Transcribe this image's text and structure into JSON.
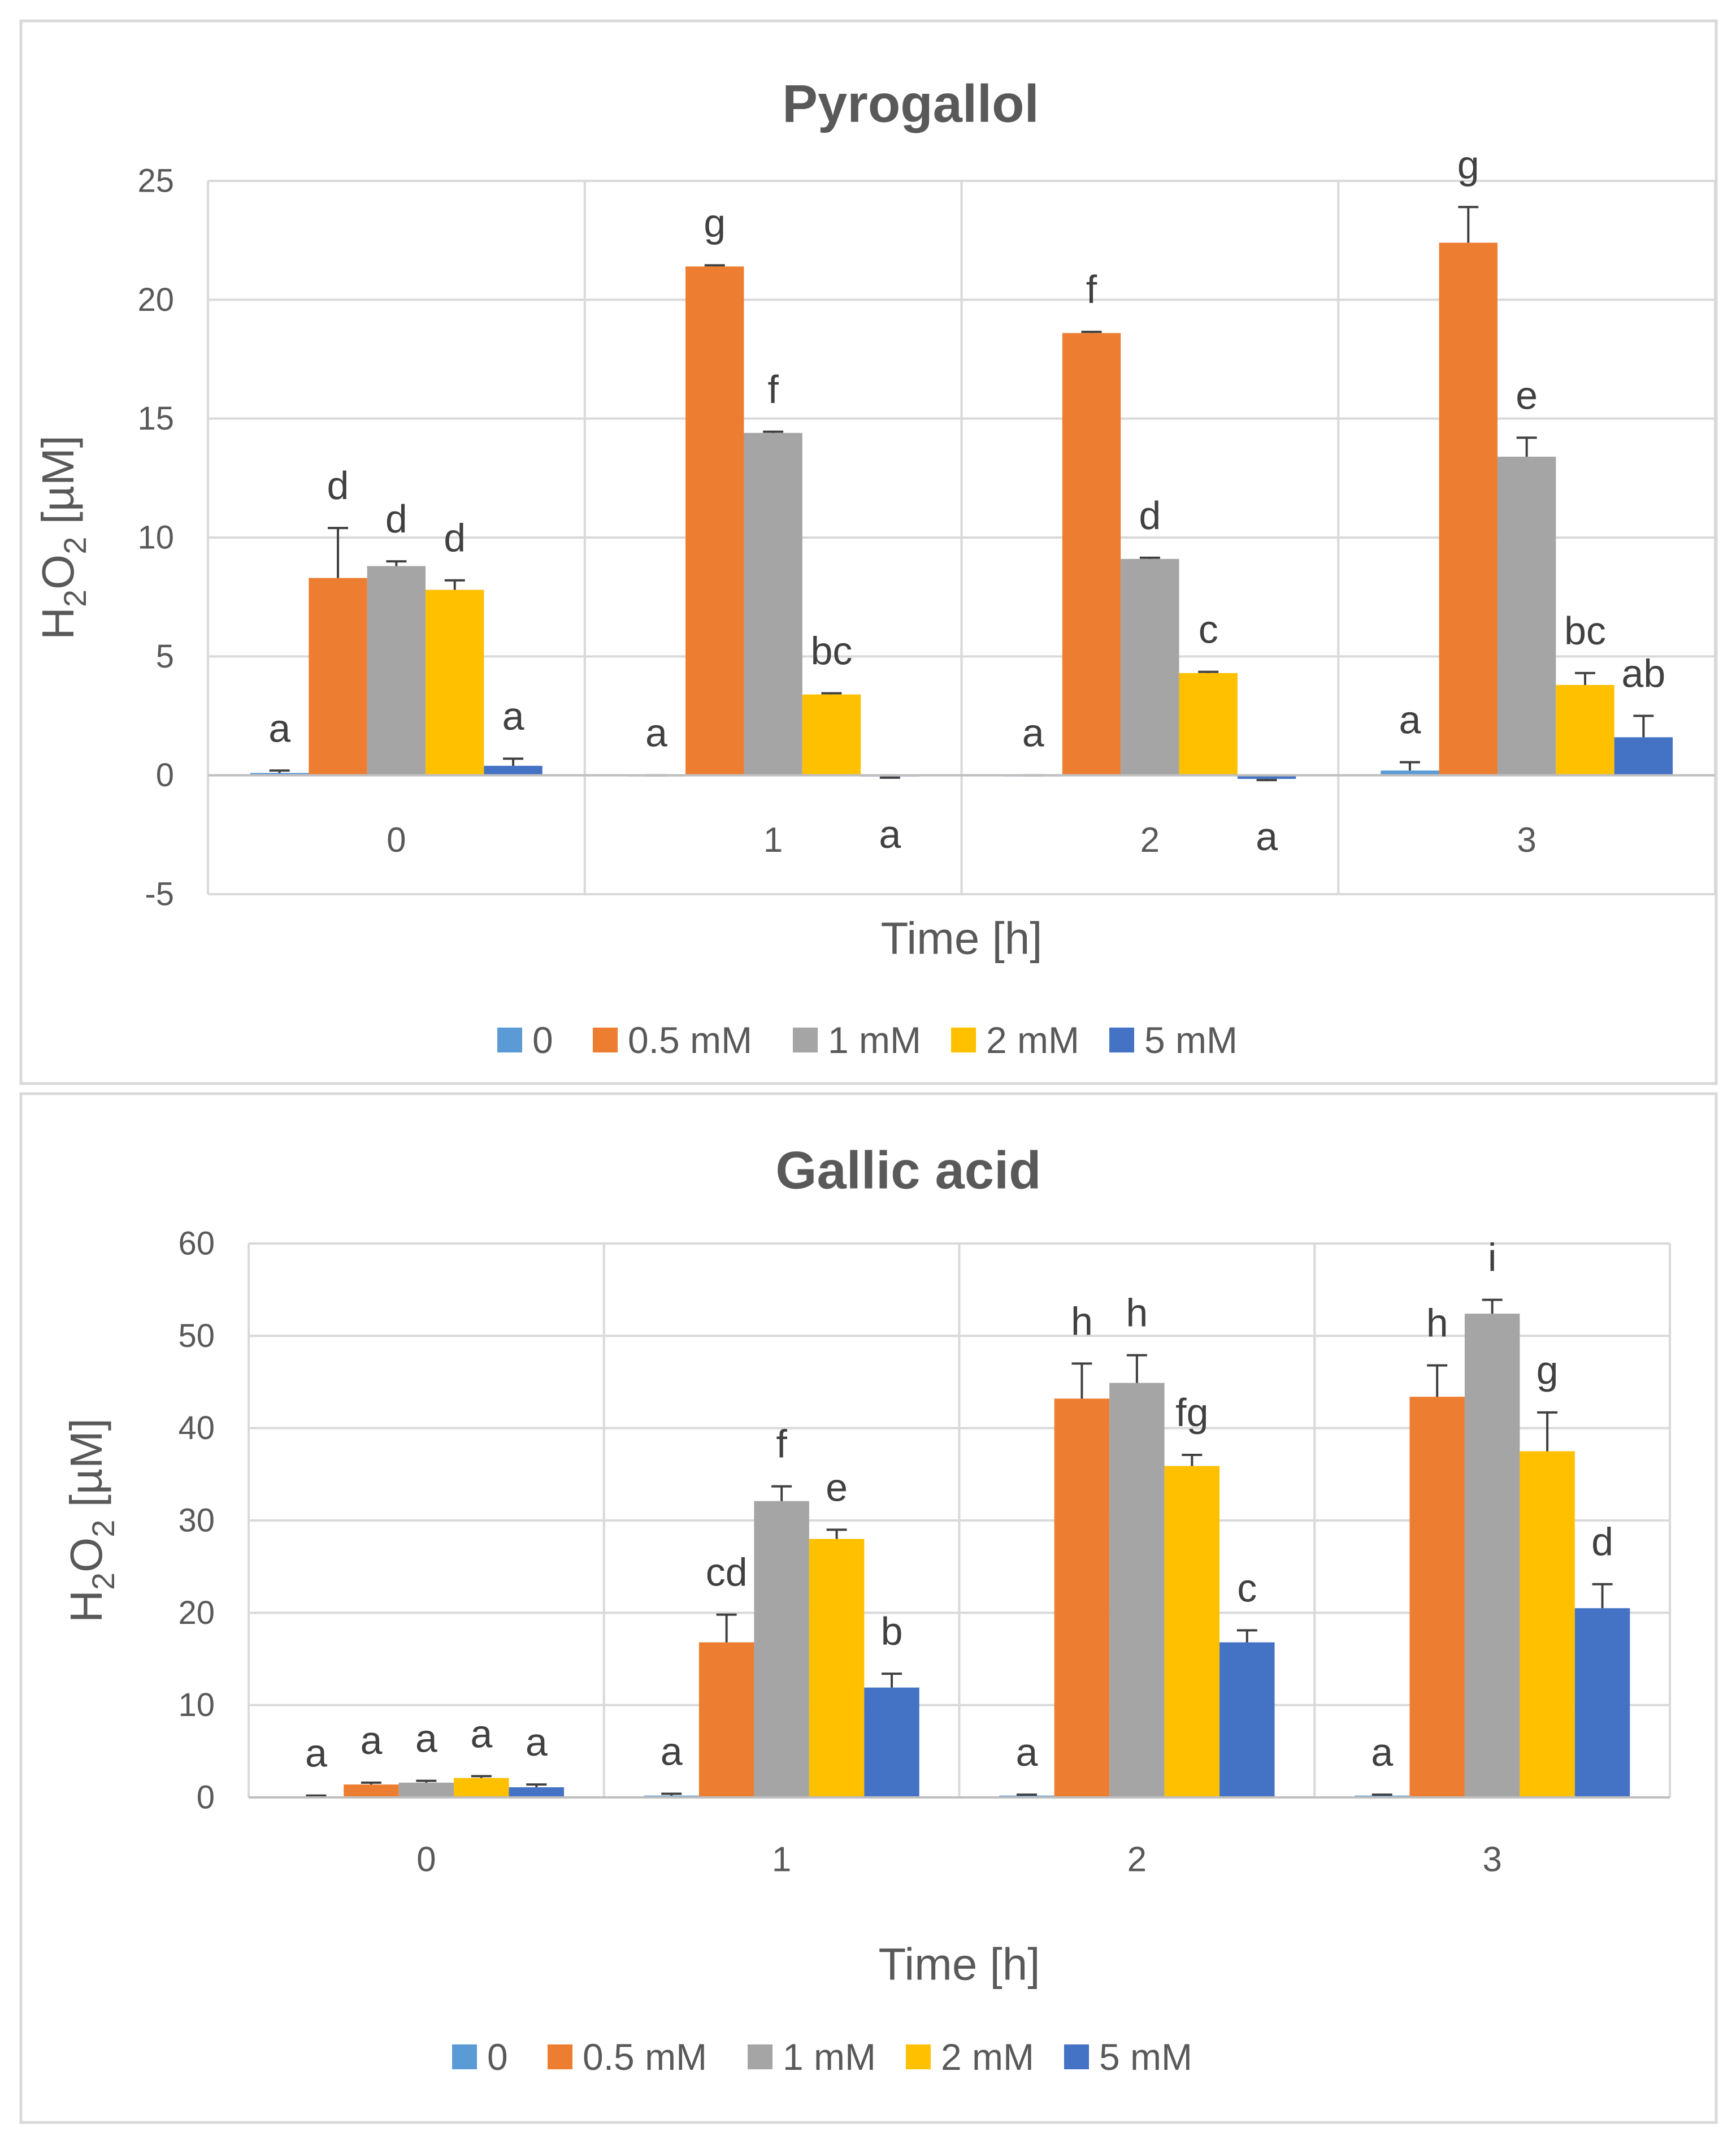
{
  "chart_data": [
    {
      "type": "bar",
      "title": "Pyrogallol",
      "xlabel": "Time [h]",
      "ylabel_main": "H",
      "ylabel_sub1": "2",
      "ylabel_mid": "O",
      "ylabel_sub2": "2",
      "ylabel_unit": " [µM]",
      "ylim": [
        -5,
        25
      ],
      "yticks": [
        -5,
        0,
        5,
        10,
        15,
        20,
        25
      ],
      "categories": [
        "0",
        "1",
        "2",
        "3"
      ],
      "legend": [
        "0",
        "0.5 mM",
        "1 mM",
        "2 mM",
        "5 mM"
      ],
      "colors": [
        "#5B9BD5",
        "#ED7D31",
        "#A5A5A5",
        "#FFC000",
        "#4472C4"
      ],
      "series": [
        {
          "name": "0",
          "values": [
            0.1,
            0,
            0,
            0.2
          ],
          "errors": [
            0.1,
            0,
            0,
            0.35
          ],
          "labels": [
            "a",
            "a",
            "a",
            "a"
          ]
        },
        {
          "name": "0.5 mM",
          "values": [
            8.3,
            21.4,
            18.6,
            22.4
          ],
          "errors": [
            2.1,
            0.05,
            0.05,
            1.5
          ],
          "labels": [
            "d",
            "g",
            "f",
            "g"
          ]
        },
        {
          "name": "1 mM",
          "values": [
            8.8,
            14.4,
            9.1,
            13.4
          ],
          "errors": [
            0.2,
            0.05,
            0.05,
            0.8
          ],
          "labels": [
            "d",
            "f",
            "d",
            "e"
          ]
        },
        {
          "name": "2 mM",
          "values": [
            7.8,
            3.4,
            4.3,
            3.8
          ],
          "errors": [
            0.4,
            0.05,
            0.05,
            0.5
          ],
          "labels": [
            "d",
            "bc",
            "c",
            "bc"
          ]
        },
        {
          "name": "5 mM",
          "values": [
            0.4,
            -0.05,
            -0.15,
            1.6
          ],
          "errors": [
            0.3,
            0.05,
            0.05,
            0.9
          ],
          "labels": [
            "a",
            "a",
            "a",
            "ab"
          ]
        }
      ]
    },
    {
      "type": "bar",
      "title": "Gallic acid",
      "xlabel": "Time [h]",
      "ylabel_main": "H",
      "ylabel_sub1": "2",
      "ylabel_mid": "O",
      "ylabel_sub2": "2",
      "ylabel_unit": " [µM]",
      "ylim": [
        0,
        60
      ],
      "yticks": [
        0,
        10,
        20,
        30,
        40,
        50,
        60
      ],
      "categories": [
        "0",
        "1",
        "2",
        "3"
      ],
      "legend": [
        "0",
        "0.5 mM",
        "1 mM",
        "2 mM",
        "5 mM"
      ],
      "colors": [
        "#5B9BD5",
        "#ED7D31",
        "#A5A5A5",
        "#FFC000",
        "#4472C4"
      ],
      "series": [
        {
          "name": "0",
          "values": [
            0.1,
            0.2,
            0.2,
            0.2
          ],
          "errors": [
            0.1,
            0.2,
            0.1,
            0.1
          ],
          "labels": [
            "a",
            "a",
            "a",
            "a"
          ]
        },
        {
          "name": "0.5 mM",
          "values": [
            1.4,
            16.8,
            43.2,
            43.4
          ],
          "errors": [
            0.2,
            3.0,
            3.8,
            3.4
          ],
          "labels": [
            "a",
            "cd",
            "h",
            "h"
          ]
        },
        {
          "name": "1 mM",
          "values": [
            1.6,
            32.1,
            44.9,
            52.4
          ],
          "errors": [
            0.2,
            1.6,
            3.0,
            1.5
          ],
          "labels": [
            "a",
            "f",
            "h",
            "i"
          ]
        },
        {
          "name": "2 mM",
          "values": [
            2.1,
            28.0,
            35.9,
            37.5
          ],
          "errors": [
            0.2,
            1.0,
            1.2,
            4.2
          ],
          "labels": [
            "a",
            "e",
            "fg",
            "g"
          ]
        },
        {
          "name": "5 mM",
          "values": [
            1.1,
            11.9,
            16.8,
            20.5
          ],
          "errors": [
            0.3,
            1.5,
            1.3,
            2.6
          ],
          "labels": [
            "a",
            "b",
            "c",
            "d"
          ]
        }
      ]
    }
  ]
}
